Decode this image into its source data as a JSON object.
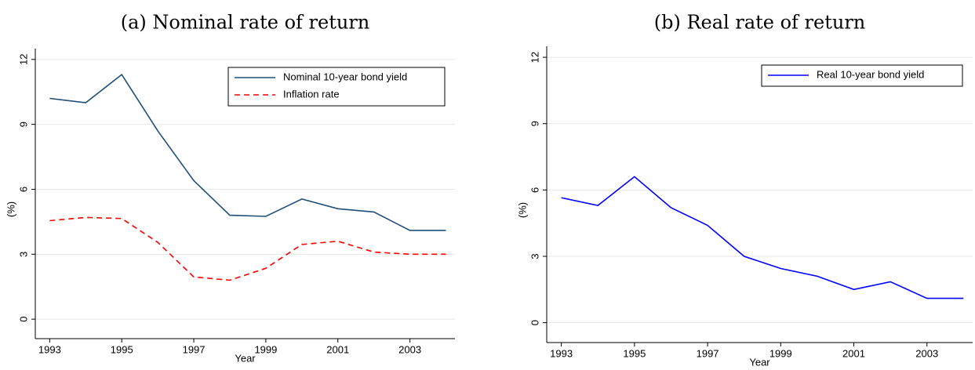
{
  "chart_data": [
    {
      "type": "line",
      "title": "(a) Nominal rate of return",
      "xlabel": "Year",
      "ylabel": "(%)",
      "x": [
        1993,
        1994,
        1995,
        1996,
        1997,
        1998,
        1999,
        2000,
        2001,
        2002,
        2003,
        2004
      ],
      "series": [
        {
          "name": "Nominal 10-year bond yield",
          "color": "#1f4e79",
          "linestyle": "solid",
          "values": [
            10.2,
            10.0,
            11.3,
            8.7,
            6.4,
            4.8,
            4.75,
            5.55,
            5.1,
            4.95,
            4.1,
            4.1
          ]
        },
        {
          "name": "Inflation rate",
          "color": "#ff0000",
          "linestyle": "dashed",
          "values": [
            4.55,
            4.7,
            4.65,
            3.55,
            1.95,
            1.8,
            2.35,
            3.45,
            3.6,
            3.1,
            3.0,
            3.0
          ]
        }
      ],
      "xlim": [
        1992.6,
        2004.25
      ],
      "ylim": [
        -0.9,
        12.5
      ],
      "xticks": [
        1993,
        1995,
        1997,
        1999,
        2001,
        2003
      ],
      "yticks": [
        0,
        3,
        6,
        9,
        12
      ],
      "grid": true,
      "legend": "upper right"
    },
    {
      "type": "line",
      "title": "(b) Real rate of return",
      "xlabel": "Year",
      "ylabel": "(%)",
      "x": [
        1993,
        1994,
        1995,
        1996,
        1997,
        1998,
        1999,
        2000,
        2001,
        2002,
        2003,
        2004
      ],
      "series": [
        {
          "name": "Real 10-year bond yield",
          "color": "#0000ff",
          "linestyle": "solid",
          "values": [
            5.65,
            5.3,
            6.6,
            5.2,
            4.4,
            3.0,
            2.45,
            2.1,
            1.5,
            1.85,
            1.1,
            1.1
          ]
        }
      ],
      "xlim": [
        1992.6,
        2004.25
      ],
      "ylim": [
        -0.9,
        12.5
      ],
      "xticks": [
        1993,
        1995,
        1997,
        1999,
        2001,
        2003
      ],
      "yticks": [
        0,
        3,
        6,
        9,
        12
      ],
      "grid": true,
      "legend": "upper right"
    }
  ]
}
